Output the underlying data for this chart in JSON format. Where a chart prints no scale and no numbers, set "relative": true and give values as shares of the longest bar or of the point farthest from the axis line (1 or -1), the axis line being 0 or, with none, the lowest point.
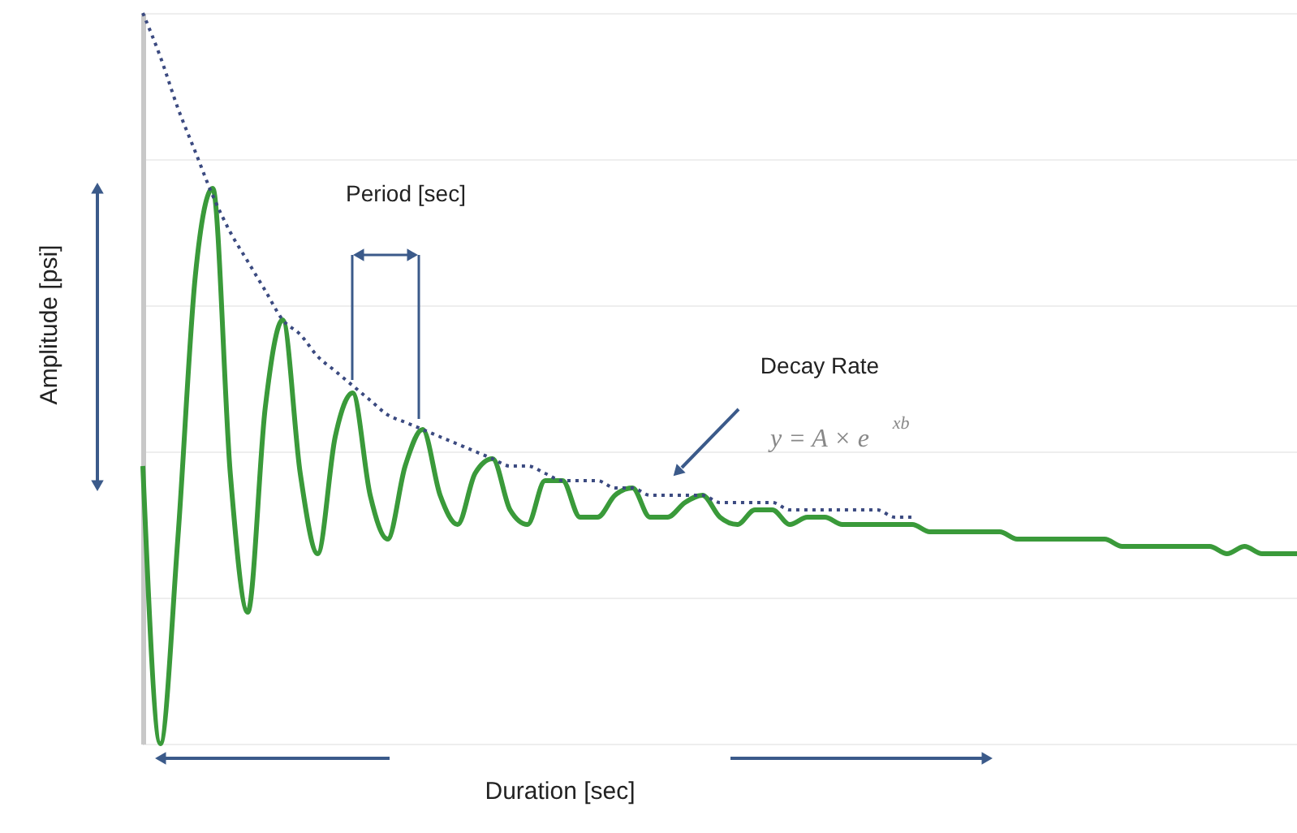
{
  "chart_data": {
    "type": "line",
    "relative": true,
    "xlabel": "Duration [sec]",
    "ylabel": "Amplitude [psi]",
    "categories": [
      null,
      null,
      null,
      null,
      null,
      null,
      null,
      null,
      null,
      null,
      null,
      null,
      null,
      null,
      null,
      null,
      null,
      null,
      null,
      null,
      null,
      null,
      null,
      null,
      null,
      null,
      null,
      null,
      null,
      null,
      null,
      null,
      null,
      null,
      null,
      null,
      null,
      null,
      null,
      null,
      null,
      null,
      null,
      null,
      null,
      null,
      null,
      null,
      null,
      null,
      null,
      null,
      null,
      null,
      null,
      null,
      null,
      null,
      null,
      null,
      null,
      null,
      null,
      null,
      null,
      null,
      null
    ],
    "series": [
      {
        "color": "#3a9a3a",
        "line_style": "solid",
        "values": [
          0.38,
          0,
          0.28,
          0.64,
          0.76,
          0.37,
          0.18,
          0.46,
          0.58,
          0.37,
          0.26,
          0.42,
          0.48,
          0.34,
          0.28,
          0.38,
          0.43,
          0.34,
          0.3,
          0.37,
          0.39,
          0.32,
          0.3,
          0.36,
          0.36,
          0.31,
          0.31,
          0.34,
          0.35,
          0.31,
          0.31,
          0.33,
          0.34,
          0.31,
          0.3,
          0.32,
          0.32,
          0.3,
          0.31,
          0.31,
          0.3,
          0.3,
          0.3,
          0.3,
          0.3,
          0.29,
          0.29,
          0.29,
          0.29,
          0.29,
          0.28,
          0.28,
          0.28,
          0.28,
          0.28,
          0.28,
          0.27,
          0.27,
          0.27,
          0.27,
          0.27,
          0.27,
          0.26,
          0.27,
          0.26,
          0.26,
          0.26
        ]
      },
      {
        "color": "#3b4a80",
        "line_style": "dotted",
        "values": [
          1.0,
          0.94,
          0.87,
          0.81,
          0.75,
          0.7,
          0.66,
          0.62,
          0.58,
          0.56,
          0.53,
          0.51,
          0.49,
          0.47,
          0.45,
          0.44,
          0.43,
          0.42,
          0.41,
          0.4,
          0.39,
          0.38,
          0.38,
          0.37,
          0.36,
          0.36,
          0.36,
          0.35,
          0.35,
          0.34,
          0.34,
          0.34,
          0.34,
          0.33,
          0.33,
          0.33,
          0.33,
          0.32,
          0.32,
          0.32,
          0.32,
          0.32,
          0.32,
          0.31,
          0.31,
          null,
          null,
          null,
          null,
          null,
          null,
          null,
          null,
          null,
          null,
          null,
          null,
          null,
          null,
          null,
          null,
          null,
          null,
          null,
          null,
          null,
          null
        ]
      }
    ],
    "annotations": [
      "Period [sec]",
      "Decay Rate",
      "y = A × e$^{xb}$"
    ],
    "grid": "y",
    "tick_labels": false
  }
}
